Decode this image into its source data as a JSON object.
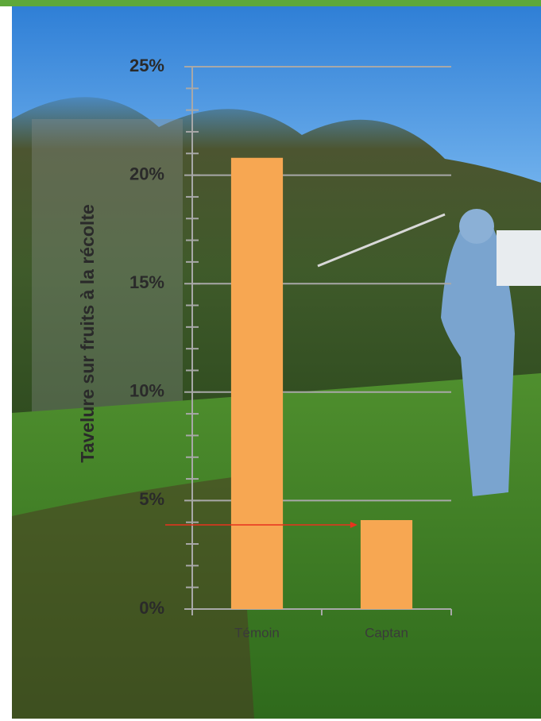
{
  "chart_data": {
    "type": "bar",
    "y_label": "Tavelure sur fruits à la récolte",
    "categories": [
      "Témoin",
      "Captan"
    ],
    "values": [
      20.8,
      4.1
    ],
    "color": "#f7a752",
    "ylim": [
      0,
      25
    ],
    "yticks": [
      {
        "value": 0,
        "label": "0%"
      },
      {
        "value": 5,
        "label": "5%"
      },
      {
        "value": 10,
        "label": "10%"
      },
      {
        "value": 15,
        "label": "15%"
      },
      {
        "value": 20,
        "label": "20%"
      },
      {
        "value": 25,
        "label": "25%"
      }
    ],
    "yticks_minor": [
      1,
      2,
      3,
      4,
      6,
      7,
      8,
      9,
      11,
      12,
      13,
      14,
      16,
      17,
      18,
      19,
      21,
      22,
      23,
      24
    ],
    "grid": true,
    "grid_color": "#a8a8a8",
    "arrow_color": "#e8321e"
  }
}
